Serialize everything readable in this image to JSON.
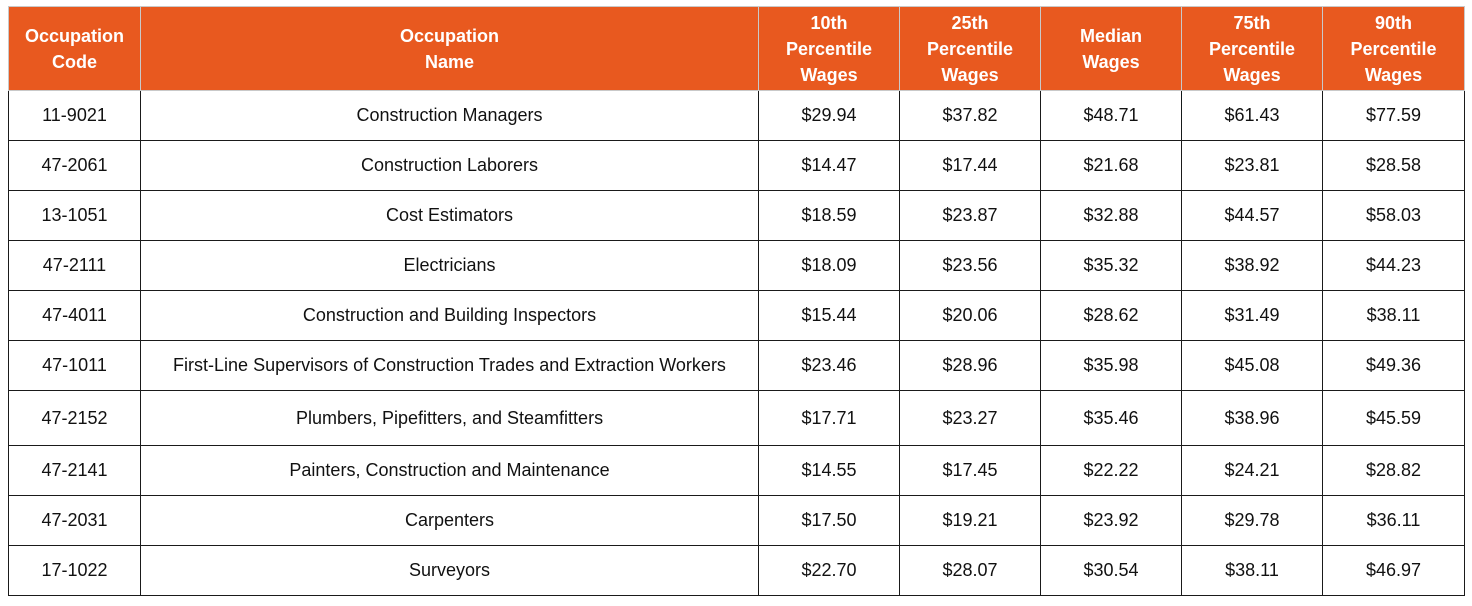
{
  "table": {
    "columns": [
      "Occupation Code",
      "Occupation Name",
      "10th Percentile Wages",
      "25th Percentile Wages",
      "Median Wages",
      "75th Percentile Wages",
      "90th Percentile Wages"
    ],
    "rows": [
      [
        "11-9021",
        "Construction Managers",
        "$29.94",
        "$37.82",
        "$48.71",
        "$61.43",
        "$77.59"
      ],
      [
        "47-2061",
        "Construction Laborers",
        "$14.47",
        "$17.44",
        "$21.68",
        "$23.81",
        "$28.58"
      ],
      [
        "13-1051",
        "Cost Estimators",
        "$18.59",
        "$23.87",
        "$32.88",
        "$44.57",
        "$58.03"
      ],
      [
        "47-2111",
        "Electricians",
        "$18.09",
        "$23.56",
        "$35.32",
        "$38.92",
        "$44.23"
      ],
      [
        "47-4011",
        "Construction and Building Inspectors",
        "$15.44",
        "$20.06",
        "$28.62",
        "$31.49",
        "$38.11"
      ],
      [
        "47-1011",
        "First-Line Supervisors of Construction Trades and Extraction Workers",
        "$23.46",
        "$28.96",
        "$35.98",
        "$45.08",
        "$49.36"
      ],
      [
        "47-2152",
        "Plumbers, Pipefitters, and Steamfitters",
        "$17.71",
        "$23.27",
        "$35.46",
        "$38.96",
        "$45.59"
      ],
      [
        "47-2141",
        "Painters, Construction and Maintenance",
        "$14.55",
        "$17.45",
        "$22.22",
        "$24.21",
        "$28.82"
      ],
      [
        "47-2031",
        "Carpenters",
        "$17.50",
        "$19.21",
        "$23.92",
        "$29.78",
        "$36.11"
      ],
      [
        "17-1022",
        "Surveyors",
        "$22.70",
        "$28.07",
        "$30.54",
        "$38.11",
        "$46.97"
      ]
    ]
  }
}
